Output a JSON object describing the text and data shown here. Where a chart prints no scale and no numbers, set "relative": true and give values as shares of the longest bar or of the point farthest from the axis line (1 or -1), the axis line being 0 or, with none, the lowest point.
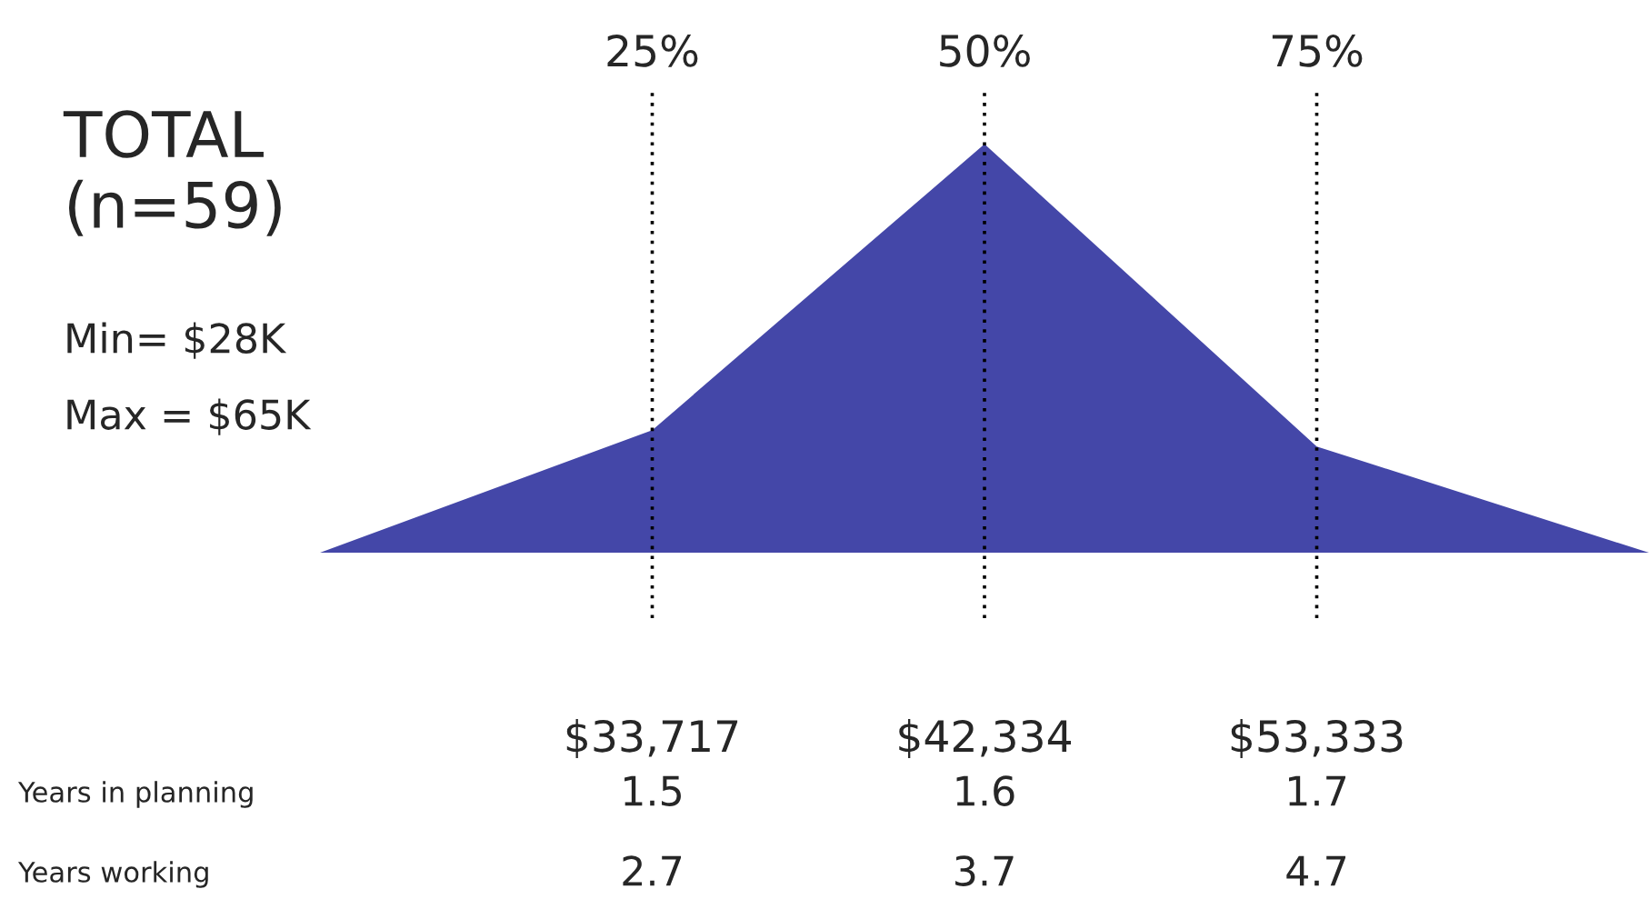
{
  "chart_data": {
    "type": "area",
    "title": "TOTAL\n(n=59)",
    "relative": true,
    "grid": "x",
    "categories": [
      null,
      "$33,717",
      "$42,334",
      "$53,333",
      null
    ],
    "series": [
      {
        "color": "#4447a8",
        "values": [
          0,
          0.3,
          1,
          0.26,
          0
        ]
      }
    ],
    "annotations": [
      "Min= $28K",
      "Max = $65K",
      "25%",
      "50%",
      "75%",
      "Years in planning",
      "1.5",
      "1.6",
      "1.7",
      "Years working",
      "2.7",
      "3.7",
      "4.7"
    ]
  }
}
